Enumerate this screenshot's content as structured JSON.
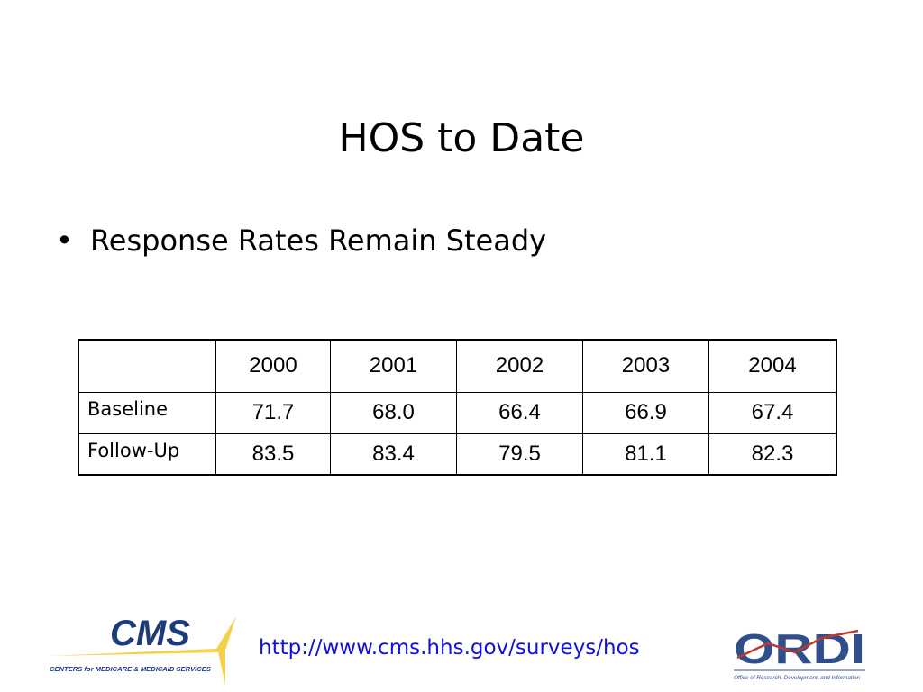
{
  "title": "HOS to Date",
  "bullets": [
    "Response Rates Remain Steady"
  ],
  "table": {
    "header": [
      "2000",
      "2001",
      "2002",
      "2003",
      "2004"
    ],
    "rows": [
      {
        "label": "Baseline",
        "cells": [
          "71.7",
          "68.0",
          "66.4",
          "66.9",
          "67.4"
        ]
      },
      {
        "label": "Follow-Up",
        "cells": [
          "83.5",
          "83.4",
          "79.5",
          "81.1",
          "82.3"
        ]
      }
    ]
  },
  "footer": {
    "url": "http://www.cms.hhs.gov/surveys/hos",
    "left_logo": {
      "name": "CMS",
      "caption": "CENTERS for MEDICARE & MEDICAID SERVICES"
    },
    "right_logo": {
      "name": "ORDI",
      "caption": "Office of Research, Development, and Information"
    }
  }
}
